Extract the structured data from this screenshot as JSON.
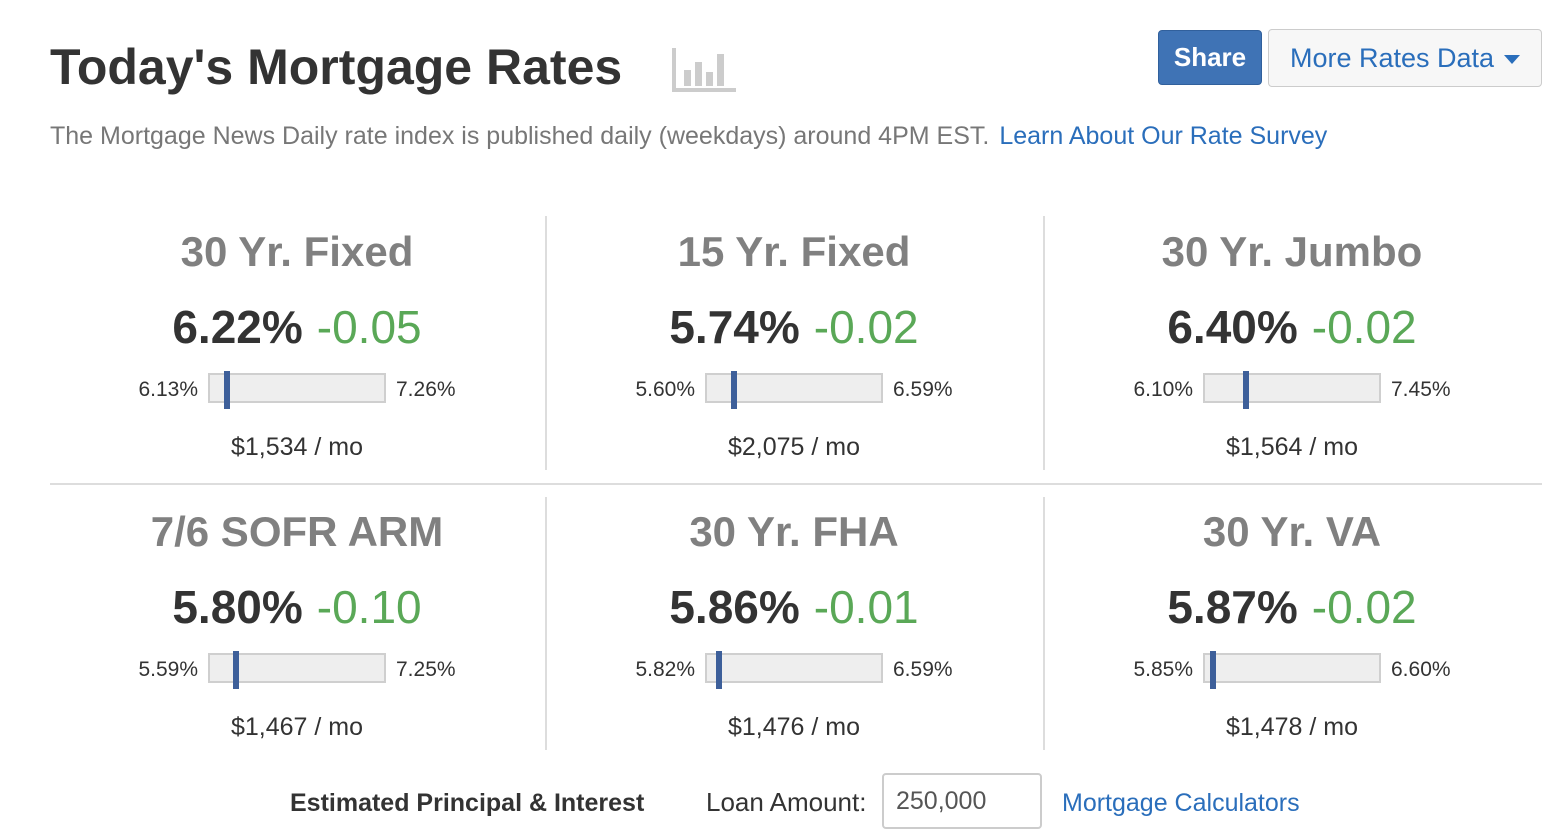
{
  "header": {
    "title": "Today's Mortgage Rates",
    "subtitle": "The Mortgage News Daily rate index is published daily (weekdays) around 4PM EST.",
    "survey_link": "Learn About Our Rate Survey",
    "share_label": "Share",
    "more_label": "More Rates Data"
  },
  "products": [
    {
      "name": "30 Yr. Fixed",
      "rate": "6.22%",
      "change": "-0.05",
      "low": "6.13%",
      "high": "7.26%",
      "payment": "$1,534 / mo",
      "position": 0.08
    },
    {
      "name": "15 Yr. Fixed",
      "rate": "5.74%",
      "change": "-0.02",
      "low": "5.60%",
      "high": "6.59%",
      "payment": "$2,075 / mo",
      "position": 0.14
    },
    {
      "name": "30 Yr. Jumbo",
      "rate": "6.40%",
      "change": "-0.02",
      "low": "6.10%",
      "high": "7.45%",
      "payment": "$1,564 / mo",
      "position": 0.22
    },
    {
      "name": "7/6 SOFR ARM",
      "rate": "5.80%",
      "change": "-0.10",
      "low": "5.59%",
      "high": "7.25%",
      "payment": "$1,467 / mo",
      "position": 0.13
    },
    {
      "name": "30 Yr. FHA",
      "rate": "5.86%",
      "change": "-0.01",
      "low": "5.82%",
      "high": "6.59%",
      "payment": "$1,476 / mo",
      "position": 0.05
    },
    {
      "name": "30 Yr. VA",
      "rate": "5.87%",
      "change": "-0.02",
      "low": "5.85%",
      "high": "6.60%",
      "payment": "$1,478 / mo",
      "position": 0.03
    }
  ],
  "footer": {
    "label": "Estimated Principal & Interest",
    "loan_label": "Loan Amount:",
    "loan_value": "250,000",
    "calc_link": "Mortgage Calculators"
  },
  "colors": {
    "accent": "#3f73b5",
    "link": "#2a6ebb",
    "change_down": "#5aa857",
    "marker": "#3d5f9a"
  },
  "icons": {
    "chart": "bar-chart-icon",
    "caret": "caret-down-icon"
  }
}
